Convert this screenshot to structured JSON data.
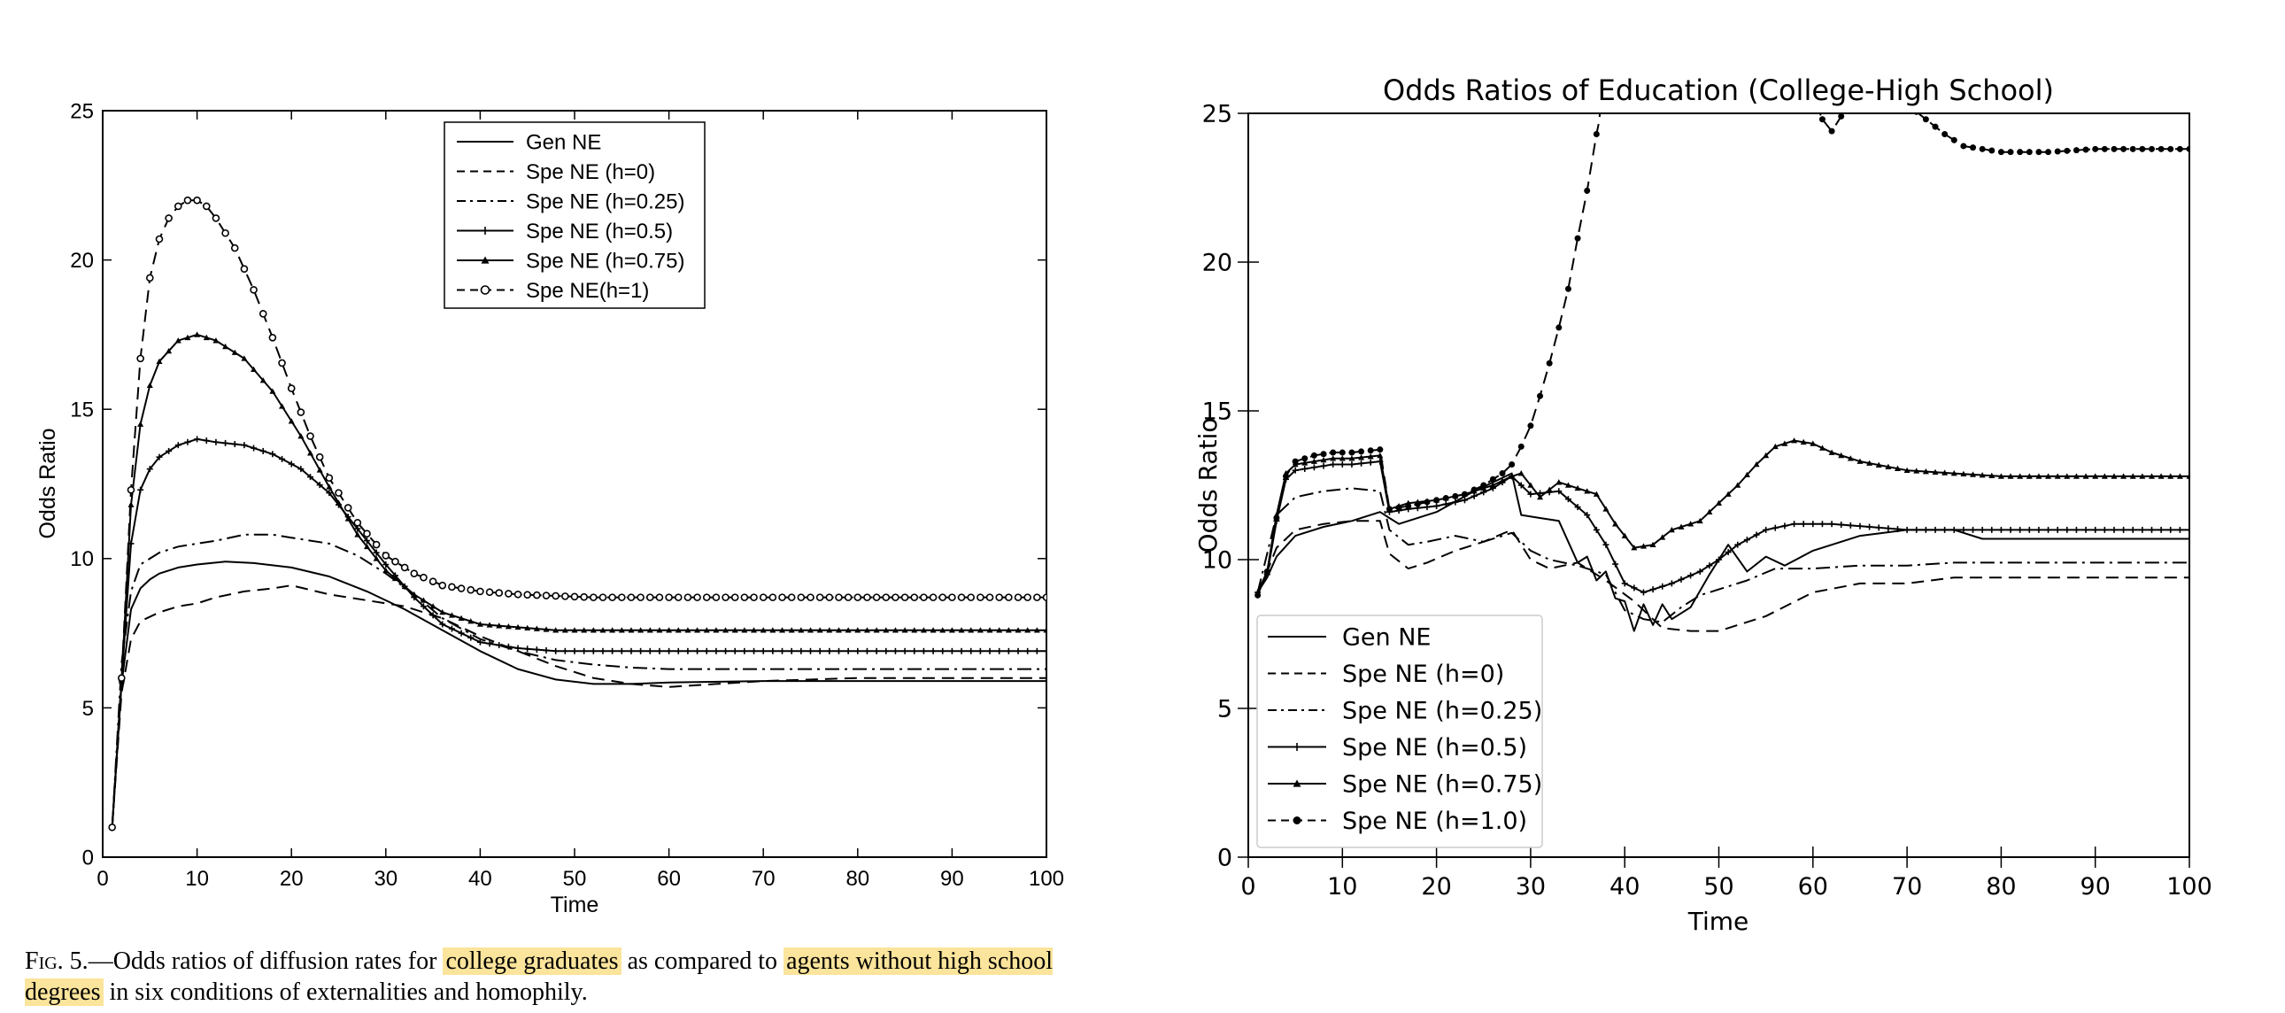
{
  "caption": {
    "fig_label": "Fig. 5.",
    "part1": "—Odds ratios of diffusion rates for ",
    "highlight1": "college graduates",
    "part2": " as compared to ",
    "highlight2": "agents without high school degrees",
    "part3": " in six conditions of externalities and homophily."
  },
  "chart_data": [
    {
      "type": "line",
      "title": "",
      "xlabel": "Time",
      "ylabel": "Odds Ratio",
      "xlim": [
        0,
        100
      ],
      "ylim": [
        0,
        25
      ],
      "xticks": [
        0,
        10,
        20,
        30,
        40,
        50,
        60,
        70,
        80,
        90,
        100
      ],
      "yticks": [
        0,
        5,
        10,
        15,
        20,
        25
      ],
      "legend_position": "top-center",
      "series": [
        {
          "name": "Gen NE",
          "style": "solid",
          "marker": "none",
          "x": [
            1,
            2,
            3,
            4,
            5,
            6,
            8,
            10,
            13,
            16,
            20,
            24,
            28,
            32,
            36,
            40,
            44,
            48,
            52,
            56,
            60,
            70,
            80,
            90,
            100
          ],
          "y": [
            1,
            5.8,
            8.3,
            9.0,
            9.3,
            9.5,
            9.7,
            9.8,
            9.9,
            9.85,
            9.7,
            9.4,
            8.9,
            8.3,
            7.6,
            6.9,
            6.3,
            5.95,
            5.8,
            5.8,
            5.85,
            5.9,
            5.9,
            5.9,
            5.9
          ]
        },
        {
          "name": "Spe NE (h=0)",
          "style": "dashed",
          "marker": "none",
          "x": [
            1,
            2,
            3,
            4,
            6,
            8,
            10,
            12,
            15,
            18,
            20,
            24,
            28,
            32,
            36,
            40,
            44,
            48,
            52,
            56,
            60,
            65,
            70,
            80,
            90,
            100
          ],
          "y": [
            1,
            5.5,
            7.3,
            7.9,
            8.2,
            8.4,
            8.5,
            8.7,
            8.9,
            9.0,
            9.1,
            8.8,
            8.6,
            8.4,
            8.0,
            7.4,
            6.9,
            6.4,
            6.0,
            5.8,
            5.7,
            5.8,
            5.9,
            6.0,
            6.0,
            6.0
          ]
        },
        {
          "name": "Spe NE (h=0.25)",
          "style": "dashdot",
          "marker": "none",
          "x": [
            1,
            2,
            3,
            4,
            6,
            8,
            10,
            12,
            15,
            18,
            20,
            24,
            27,
            30,
            33,
            36,
            40,
            44,
            48,
            52,
            56,
            60,
            70,
            80,
            90,
            100
          ],
          "y": [
            1,
            6.5,
            8.9,
            9.8,
            10.2,
            10.4,
            10.5,
            10.6,
            10.8,
            10.8,
            10.7,
            10.5,
            10.1,
            9.5,
            8.8,
            8.0,
            7.3,
            6.9,
            6.6,
            6.45,
            6.35,
            6.3,
            6.3,
            6.3,
            6.3,
            6.3
          ]
        },
        {
          "name": "Spe NE (h=0.5)",
          "style": "solid",
          "marker": "plus",
          "x": [
            1,
            2,
            3,
            4,
            5,
            6,
            8,
            10,
            12,
            15,
            18,
            21,
            24,
            27,
            30,
            33,
            36,
            40,
            44,
            48,
            52,
            56,
            60,
            70,
            80,
            90,
            100
          ],
          "y": [
            1,
            5.9,
            10.5,
            12.3,
            13.0,
            13.4,
            13.8,
            14.0,
            13.9,
            13.8,
            13.5,
            13.0,
            12.2,
            11.0,
            9.8,
            8.7,
            7.8,
            7.2,
            7.0,
            6.9,
            6.9,
            6.9,
            6.9,
            6.9,
            6.9,
            6.9,
            6.9
          ]
        },
        {
          "name": "Spe NE (h=0.75)",
          "style": "solid",
          "marker": "triangle",
          "x": [
            1,
            2,
            3,
            4,
            5,
            6,
            8,
            10,
            12,
            15,
            18,
            21,
            24,
            27,
            30,
            33,
            36,
            40,
            44,
            48,
            52,
            56,
            60,
            70,
            80,
            90,
            100
          ],
          "y": [
            1,
            5.9,
            11.8,
            14.5,
            15.8,
            16.6,
            17.3,
            17.5,
            17.3,
            16.7,
            15.6,
            14.1,
            12.4,
            10.8,
            9.6,
            8.8,
            8.2,
            7.8,
            7.7,
            7.6,
            7.6,
            7.6,
            7.6,
            7.6,
            7.6,
            7.6,
            7.6
          ]
        },
        {
          "name": "Spe NE(h=1)",
          "style": "dashed",
          "marker": "circle",
          "x": [
            1,
            2,
            3,
            4,
            5,
            6,
            7,
            8,
            9,
            10,
            11,
            12,
            14,
            16,
            18,
            20,
            22,
            24,
            27,
            30,
            33,
            36,
            40,
            44,
            48,
            52,
            56,
            60,
            70,
            80,
            90,
            100
          ],
          "y": [
            1,
            6.0,
            12.3,
            16.7,
            19.4,
            20.7,
            21.4,
            21.8,
            22.0,
            22.0,
            21.8,
            21.4,
            20.4,
            19.0,
            17.4,
            15.7,
            14.1,
            12.7,
            11.2,
            10.1,
            9.5,
            9.1,
            8.9,
            8.8,
            8.75,
            8.7,
            8.7,
            8.7,
            8.7,
            8.7,
            8.7,
            8.7
          ]
        }
      ]
    },
    {
      "type": "line",
      "title": "Odds Ratios of Education (College-High School)",
      "xlabel": "Time",
      "ylabel": "Odds Ratio",
      "xlim": [
        0,
        100
      ],
      "ylim": [
        0,
        25
      ],
      "xticks": [
        0,
        10,
        20,
        30,
        40,
        50,
        60,
        70,
        80,
        90,
        100
      ],
      "yticks": [
        0,
        5,
        10,
        15,
        20,
        25
      ],
      "legend_position": "lower-left",
      "series": [
        {
          "name": "Gen NE",
          "style": "solid",
          "marker": "none",
          "x": [
            1,
            2,
            3,
            5,
            8,
            11,
            14,
            15,
            16,
            20,
            24,
            28,
            29,
            31,
            33,
            34,
            35,
            36,
            37,
            38,
            39,
            40,
            41,
            42,
            43,
            44,
            45,
            47,
            49,
            51,
            53,
            55,
            57,
            60,
            65,
            70,
            75,
            78,
            80,
            90,
            100
          ],
          "y": [
            8.9,
            9.4,
            10.1,
            10.8,
            11.1,
            11.3,
            11.6,
            11.4,
            11.2,
            11.6,
            12.3,
            12.9,
            11.5,
            11.4,
            11.3,
            10.6,
            9.9,
            10.1,
            9.3,
            9.6,
            8.7,
            8.6,
            7.6,
            8.5,
            7.8,
            8.5,
            8.0,
            8.4,
            9.5,
            10.5,
            9.6,
            10.1,
            9.8,
            10.3,
            10.8,
            11.0,
            11.0,
            10.7,
            10.7,
            10.7,
            10.7
          ]
        },
        {
          "name": "Spe NE (h=0)",
          "style": "dashed",
          "marker": "none",
          "x": [
            1,
            2,
            3,
            5,
            8,
            11,
            14,
            15,
            17,
            19,
            22,
            25,
            28,
            30,
            32,
            35,
            38,
            41,
            44,
            47,
            50,
            55,
            60,
            65,
            70,
            75,
            80,
            90,
            100
          ],
          "y": [
            8.9,
            9.6,
            10.4,
            11.0,
            11.2,
            11.3,
            11.3,
            10.2,
            9.7,
            9.9,
            10.3,
            10.6,
            11.0,
            10.0,
            9.7,
            9.9,
            9.3,
            8.6,
            7.7,
            7.6,
            7.6,
            8.1,
            8.9,
            9.2,
            9.2,
            9.4,
            9.4,
            9.4,
            9.4
          ]
        },
        {
          "name": "Spe NE (h=0.25)",
          "style": "dashdot",
          "marker": "none",
          "x": [
            1,
            2,
            3,
            5,
            8,
            11,
            14,
            15,
            17,
            19,
            22,
            25,
            28,
            30,
            32,
            35,
            38,
            40,
            42,
            44,
            46,
            48,
            50,
            53,
            56,
            60,
            65,
            70,
            75,
            80,
            90,
            100
          ],
          "y": [
            8.9,
            10.2,
            11.5,
            12.1,
            12.3,
            12.4,
            12.3,
            11.0,
            10.5,
            10.6,
            10.8,
            10.6,
            10.9,
            10.3,
            10.0,
            9.8,
            9.5,
            8.3,
            8.0,
            7.9,
            8.4,
            8.8,
            9.0,
            9.3,
            9.7,
            9.7,
            9.8,
            9.8,
            9.9,
            9.9,
            9.9,
            9.9
          ]
        },
        {
          "name": "Spe NE (h=0.5)",
          "style": "solid",
          "marker": "plus",
          "x": [
            1,
            2,
            3,
            4,
            5,
            7,
            9,
            11,
            14,
            15,
            17,
            20,
            23,
            26,
            28,
            30,
            33,
            36,
            38,
            40,
            42,
            45,
            48,
            50,
            52,
            55,
            58,
            62,
            66,
            70,
            80,
            90,
            100
          ],
          "y": [
            8.9,
            9.5,
            11.3,
            12.7,
            13.0,
            13.1,
            13.2,
            13.2,
            13.3,
            11.6,
            11.7,
            11.8,
            12.0,
            12.4,
            12.8,
            12.2,
            12.3,
            11.5,
            10.5,
            9.2,
            8.9,
            9.2,
            9.6,
            10.0,
            10.5,
            11.0,
            11.2,
            11.2,
            11.1,
            11.0,
            11.0,
            11.0,
            11.0
          ]
        },
        {
          "name": "Spe NE (h=0.75)",
          "style": "solid",
          "marker": "triangle",
          "x": [
            1,
            2,
            3,
            4,
            5,
            7,
            9,
            11,
            14,
            15,
            17,
            20,
            23,
            26,
            28,
            29,
            31,
            33,
            35,
            37,
            39,
            41,
            43,
            45,
            48,
            50,
            52,
            54,
            56,
            58,
            60,
            62,
            65,
            70,
            75,
            80,
            90,
            100
          ],
          "y": [
            8.9,
            9.6,
            11.5,
            12.9,
            13.2,
            13.3,
            13.4,
            13.4,
            13.5,
            11.7,
            11.9,
            12.0,
            12.2,
            12.5,
            12.8,
            12.9,
            12.1,
            12.6,
            12.4,
            12.2,
            11.2,
            10.4,
            10.5,
            11.0,
            11.3,
            11.9,
            12.5,
            13.2,
            13.8,
            14.0,
            13.9,
            13.6,
            13.3,
            13.0,
            12.9,
            12.8,
            12.8,
            12.8
          ]
        },
        {
          "name": "Spe NE (h=1.0)",
          "style": "dashed",
          "marker": "dot",
          "x": [
            1,
            2,
            3,
            4,
            5,
            7,
            9,
            11,
            14,
            15,
            17,
            20,
            23,
            25,
            27,
            28,
            29,
            30,
            31,
            32,
            33,
            34,
            35,
            36,
            37,
            37.2,
            37.5,
            60,
            61,
            62,
            63,
            64,
            65,
            66,
            68,
            70,
            72,
            74,
            76,
            78,
            80,
            85,
            90,
            100
          ],
          "y": [
            8.8,
            9.6,
            11.4,
            12.8,
            13.3,
            13.5,
            13.6,
            13.6,
            13.7,
            11.7,
            11.8,
            12.0,
            12.2,
            12.5,
            12.9,
            13.2,
            13.8,
            14.5,
            15.5,
            16.6,
            17.8,
            19.1,
            20.8,
            22.4,
            24.3,
            24.6,
            25.3,
            25.6,
            24.8,
            24.4,
            24.9,
            25.2,
            25.6,
            25.6,
            25.6,
            25.3,
            24.8,
            24.3,
            23.9,
            23.8,
            23.7,
            23.7,
            23.8,
            23.8
          ]
        }
      ]
    }
  ]
}
